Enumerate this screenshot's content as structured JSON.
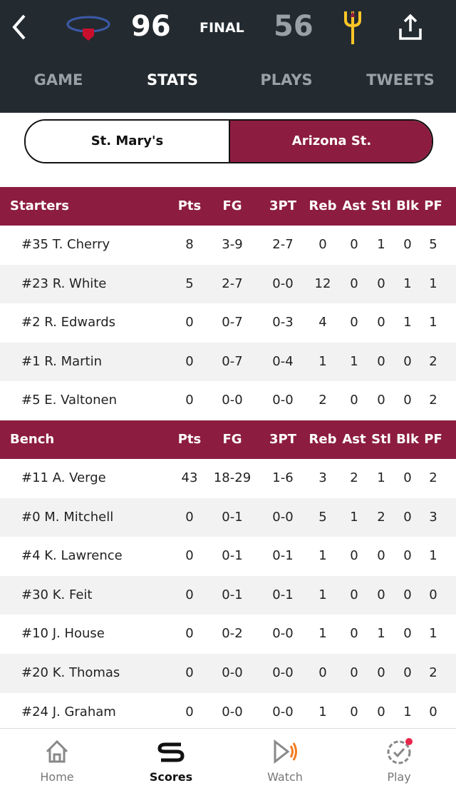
{
  "header": {
    "away_score": 96,
    "status": "FINAL",
    "home_score": 56
  },
  "tabs": {
    "items": [
      "GAME",
      "STATS",
      "PLAYS",
      "TWEETS"
    ],
    "active": 1
  },
  "team_toggle": {
    "items": [
      "St. Mary's",
      "Arizona St."
    ],
    "selected": 1
  },
  "sections": [
    {
      "title": "Starters",
      "columns": [
        "Pts",
        "FG",
        "3PT",
        "Reb",
        "Ast",
        "Stl",
        "Blk",
        "PF"
      ],
      "rows": [
        [
          "#35 T. Cherry",
          8,
          "3-9",
          "2-7",
          0,
          0,
          1,
          0,
          5
        ],
        [
          "#23 R. White",
          5,
          "2-7",
          "0-0",
          12,
          0,
          0,
          1,
          1
        ],
        [
          "#2 R. Edwards",
          0,
          "0-7",
          "0-3",
          4,
          0,
          0,
          1,
          1
        ],
        [
          "#1 R. Martin",
          0,
          "0-7",
          "0-4",
          1,
          1,
          0,
          0,
          2
        ],
        [
          "#5 E. Valtonen",
          0,
          "0-0",
          "0-0",
          2,
          0,
          0,
          0,
          2
        ]
      ]
    },
    {
      "title": "Bench",
      "columns": [
        "Pts",
        "FG",
        "3PT",
        "Reb",
        "Ast",
        "Stl",
        "Blk",
        "PF"
      ],
      "rows": [
        [
          "#11 A. Verge",
          43,
          "18-29",
          "1-6",
          3,
          2,
          1,
          0,
          2
        ],
        [
          "#0 M. Mitchell",
          0,
          "0-1",
          "0-0",
          5,
          1,
          2,
          0,
          3
        ],
        [
          "#4 K. Lawrence",
          0,
          "0-1",
          "0-1",
          1,
          0,
          0,
          0,
          1
        ],
        [
          "#30 K. Feit",
          0,
          "0-1",
          "0-1",
          1,
          0,
          0,
          0,
          0
        ],
        [
          "#10 J. House",
          0,
          "0-2",
          "0-0",
          1,
          0,
          1,
          0,
          1
        ],
        [
          "#20 K. Thomas",
          0,
          "0-0",
          "0-0",
          0,
          0,
          0,
          0,
          2
        ],
        [
          "#24 J. Graham",
          0,
          "0-0",
          "0-0",
          1,
          0,
          0,
          1,
          0
        ]
      ]
    }
  ],
  "nav": {
    "items": [
      "Home",
      "Scores",
      "Watch",
      "Play"
    ],
    "active": 1
  }
}
